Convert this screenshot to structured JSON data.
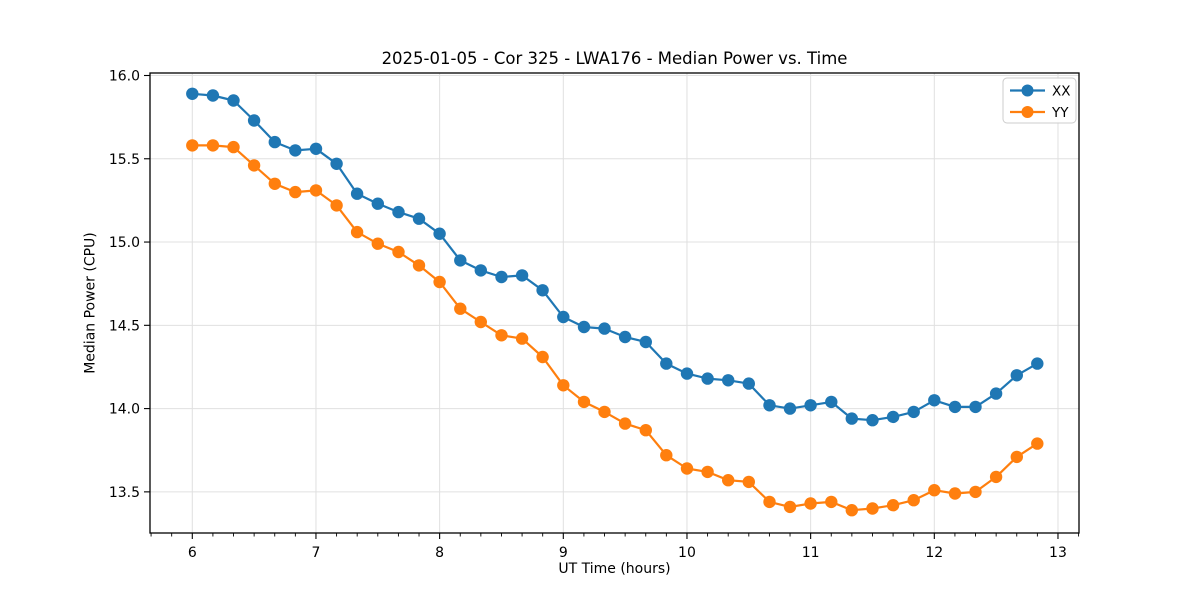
{
  "chart_data": {
    "type": "line",
    "title": "2025-01-05 - Cor 325 - LWA176 - Median Power vs. Time",
    "xlabel": "UT Time (hours)",
    "ylabel": "Median Power (CPU)",
    "xlim": [
      5.658,
      13.17
    ],
    "ylim": [
      13.253,
      16.015
    ],
    "x_ticks": [
      6,
      7,
      8,
      9,
      10,
      11,
      12,
      13
    ],
    "y_ticks": [
      13.5,
      14.0,
      14.5,
      15.0,
      15.5,
      16.0
    ],
    "minor_ticks_per_hour": 6,
    "grid": true,
    "grid_color": "#e0e0e0",
    "legend_position": "upper right",
    "x": [
      6.0,
      6.167,
      6.333,
      6.5,
      6.667,
      6.833,
      7.0,
      7.167,
      7.333,
      7.5,
      7.667,
      7.833,
      8.0,
      8.167,
      8.333,
      8.5,
      8.667,
      8.833,
      9.0,
      9.167,
      9.333,
      9.5,
      9.667,
      9.833,
      10.0,
      10.167,
      10.333,
      10.5,
      10.667,
      10.833,
      11.0,
      11.167,
      11.333,
      11.5,
      11.667,
      11.833,
      12.0,
      12.167,
      12.333,
      12.5,
      12.667,
      12.833
    ],
    "series": [
      {
        "name": "XX",
        "color": "#1f77b4",
        "values": [
          15.89,
          15.88,
          15.85,
          15.73,
          15.6,
          15.55,
          15.56,
          15.47,
          15.29,
          15.23,
          15.18,
          15.14,
          15.05,
          14.89,
          14.83,
          14.79,
          14.8,
          14.71,
          14.55,
          14.49,
          14.48,
          14.43,
          14.4,
          14.27,
          14.21,
          14.18,
          14.17,
          14.15,
          14.02,
          14.0,
          14.02,
          14.04,
          13.94,
          13.93,
          13.95,
          13.98,
          14.05,
          14.01,
          14.01,
          14.09,
          14.2,
          14.27
        ]
      },
      {
        "name": "YY",
        "color": "#ff7f0e",
        "values": [
          15.58,
          15.58,
          15.57,
          15.46,
          15.35,
          15.3,
          15.31,
          15.22,
          15.06,
          14.99,
          14.94,
          14.86,
          14.76,
          14.6,
          14.52,
          14.44,
          14.42,
          14.31,
          14.14,
          14.04,
          13.98,
          13.91,
          13.87,
          13.72,
          13.64,
          13.62,
          13.57,
          13.56,
          13.44,
          13.41,
          13.43,
          13.44,
          13.39,
          13.4,
          13.42,
          13.45,
          13.51,
          13.49,
          13.5,
          13.59,
          13.71,
          13.79
        ]
      }
    ]
  }
}
